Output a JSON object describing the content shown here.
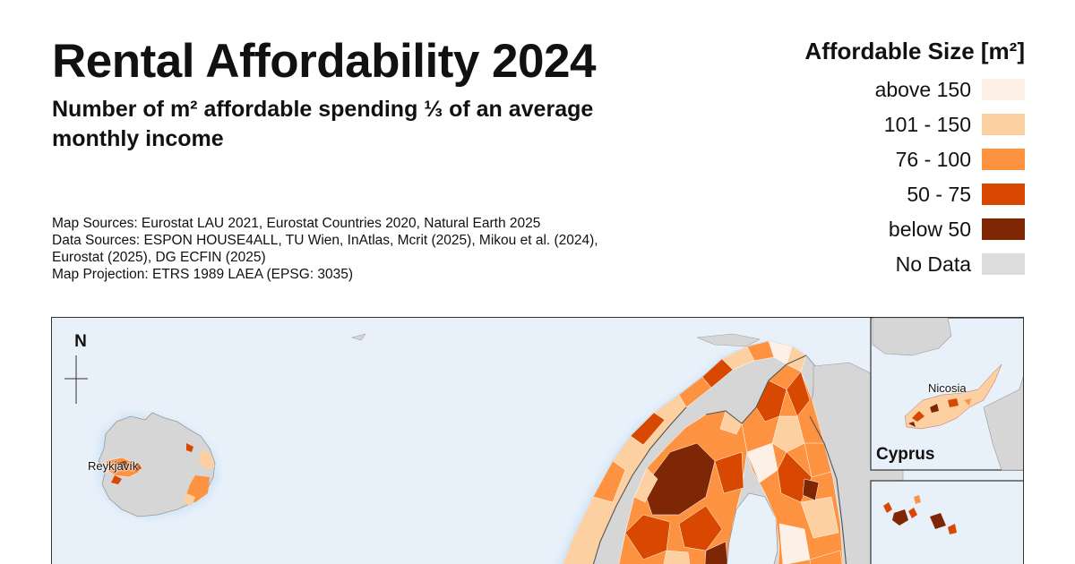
{
  "header": {
    "title": "Rental Affordability 2024",
    "subtitle": "Number of m² affordable spending ⅓ of an average monthly income"
  },
  "sources": [
    "Map Sources: Eurostat LAU 2021, Eurostat Countries 2020, Natural Earth 2025",
    "Data Sources: ESPON HOUSE4ALL, TU Wien, InAtlas, Mcrit (2025), Mikou et al. (2024),",
    "Eurostat (2025), DG ECFIN (2025)",
    "Map Projection: ETRS 1989 LAEA (EPSG: 3035)"
  ],
  "legend": {
    "title": "Affordable Size [m²]",
    "items": [
      {
        "label": "above 150",
        "color": "#fdf0e7"
      },
      {
        "label": "101 - 150",
        "color": "#fdd0a2"
      },
      {
        "label": "76 - 100",
        "color": "#fd9241"
      },
      {
        "label": "50 - 75",
        "color": "#d94801"
      },
      {
        "label": "below 50",
        "color": "#7f2704"
      },
      {
        "label": "No Data",
        "color": "#dcdcdc"
      }
    ]
  },
  "map": {
    "north_label": "N",
    "colors": {
      "sea": "#e8f1fa",
      "land_nodata": "#d6d6d6",
      "border": "#555555"
    },
    "cities": [
      {
        "name": "Reykjavík"
      },
      {
        "name": "Nicosia"
      }
    ],
    "insets": [
      {
        "name": "Cyprus"
      }
    ]
  }
}
